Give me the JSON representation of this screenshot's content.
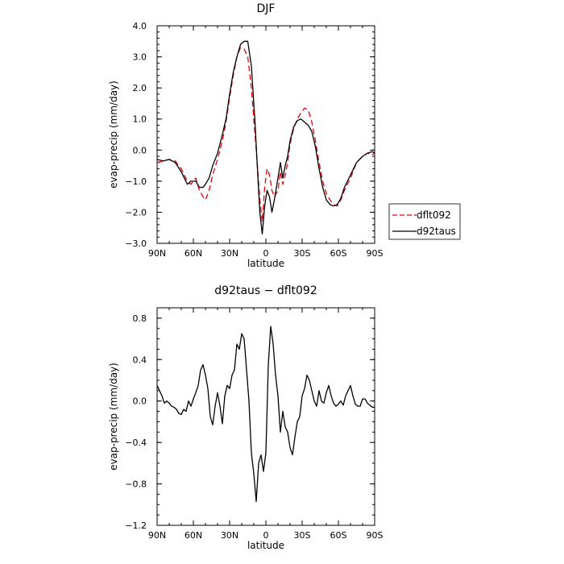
{
  "chart_data": [
    {
      "type": "line",
      "title": "DJF",
      "xlabel": "latitude",
      "ylabel": "evap-precip (mm/day)",
      "xlim": [
        90,
        -90
      ],
      "ylim": [
        -3.0,
        4.0
      ],
      "x_ticks": [
        90,
        60,
        30,
        0,
        -30,
        -60,
        -90
      ],
      "x_tick_labels": [
        "90N",
        "60N",
        "30N",
        "0",
        "30S",
        "60S",
        "90S"
      ],
      "y_ticks": [
        -3.0,
        -2.0,
        -1.0,
        0.0,
        1.0,
        2.0,
        3.0,
        4.0
      ],
      "y_tick_labels": [
        "−3.0",
        "−2.0",
        "−1.0",
        "0.0",
        "1.0",
        "2.0",
        "3.0",
        "4.0"
      ],
      "legend": "outside-right",
      "grid": false,
      "series": [
        {
          "name": "dflt092",
          "color": "#e8000b",
          "dash": "dashed",
          "x": [
            90,
            85,
            80,
            75,
            70,
            65,
            62,
            58,
            55,
            52,
            50,
            47,
            44,
            40,
            36,
            33,
            30,
            27,
            24,
            21,
            18,
            15,
            12,
            9,
            7,
            5,
            3,
            1,
            -1,
            -3,
            -5,
            -7,
            -10,
            -12,
            -14,
            -16,
            -18,
            -20,
            -23,
            -26,
            -29,
            -32,
            -35,
            -38,
            -41,
            -44,
            -47,
            -50,
            -53,
            -56,
            -59,
            -62,
            -65,
            -70,
            -75,
            -80,
            -84,
            -88,
            -90
          ],
          "y": [
            -0.4,
            -0.35,
            -0.3,
            -0.35,
            -0.6,
            -1.0,
            -1.1,
            -0.9,
            -1.3,
            -1.5,
            -1.6,
            -1.3,
            -0.8,
            -0.3,
            0.3,
            0.9,
            1.7,
            2.4,
            3.0,
            3.3,
            3.25,
            3.0,
            2.0,
            0.5,
            -0.5,
            -1.6,
            -2.3,
            -1.2,
            -0.6,
            -0.8,
            -1.3,
            -1.5,
            -1.3,
            -0.7,
            -1.1,
            -0.8,
            -0.4,
            0.2,
            0.7,
            1.0,
            1.2,
            1.35,
            1.3,
            0.9,
            0.3,
            -0.4,
            -1.0,
            -1.4,
            -1.6,
            -1.75,
            -1.8,
            -1.6,
            -1.3,
            -0.9,
            -0.4,
            -0.2,
            -0.1,
            -0.15,
            -0.1
          ]
        },
        {
          "name": "d92taus",
          "color": "#000000",
          "dash": "solid",
          "x": [
            90,
            85,
            80,
            75,
            70,
            65,
            62,
            58,
            55,
            52,
            50,
            47,
            44,
            40,
            36,
            33,
            30,
            27,
            24,
            21,
            18,
            15,
            12,
            9,
            7,
            5,
            3,
            1,
            -1,
            -3,
            -5,
            -7,
            -10,
            -12,
            -14,
            -16,
            -18,
            -20,
            -23,
            -26,
            -29,
            -32,
            -35,
            -38,
            -41,
            -44,
            -47,
            -50,
            -53,
            -56,
            -59,
            -62,
            -65,
            -70,
            -75,
            -80,
            -84,
            -88,
            -90
          ],
          "y": [
            -0.3,
            -0.35,
            -0.3,
            -0.4,
            -0.7,
            -1.1,
            -1.0,
            -1.0,
            -1.2,
            -1.2,
            -1.1,
            -0.9,
            -0.5,
            -0.1,
            0.5,
            1.0,
            1.8,
            2.5,
            3.0,
            3.4,
            3.5,
            3.5,
            2.7,
            0.9,
            -0.6,
            -2.0,
            -2.7,
            -1.8,
            -1.3,
            -1.5,
            -2.0,
            -1.6,
            -0.9,
            -0.4,
            -0.9,
            -0.5,
            -0.2,
            0.3,
            0.75,
            0.95,
            1.0,
            0.9,
            0.8,
            0.6,
            0.1,
            -0.6,
            -1.2,
            -1.6,
            -1.75,
            -1.8,
            -1.75,
            -1.55,
            -1.2,
            -0.8,
            -0.4,
            -0.2,
            -0.1,
            -0.05,
            -0.1
          ]
        }
      ]
    },
    {
      "type": "line",
      "title": "d92taus − dflt092",
      "xlabel": "latitude",
      "ylabel": "evap-precip (mm/day)",
      "xlim": [
        90,
        -90
      ],
      "ylim": [
        -1.2,
        0.9
      ],
      "x_ticks": [
        90,
        60,
        30,
        0,
        -30,
        -60,
        -90
      ],
      "x_tick_labels": [
        "90N",
        "60N",
        "30N",
        "0",
        "30S",
        "60S",
        "90S"
      ],
      "y_ticks": [
        -1.2,
        -0.8,
        -0.4,
        0.0,
        0.4,
        0.8
      ],
      "y_tick_labels": [
        "−1.2",
        "−0.8",
        "−0.4",
        "0.0",
        "0.4",
        "0.8"
      ],
      "grid": false,
      "series": [
        {
          "color": "#000000",
          "dash": "solid",
          "x": [
            90,
            88,
            86,
            84,
            82,
            80,
            78,
            76,
            74,
            72,
            70,
            68,
            66,
            64,
            62,
            60,
            58,
            56,
            54,
            52,
            50,
            48,
            46,
            44,
            42,
            40,
            38,
            36,
            34,
            32,
            30,
            28,
            26,
            24,
            22,
            20,
            18,
            16,
            14,
            12,
            10,
            8,
            6,
            4,
            2,
            0,
            -2,
            -4,
            -6,
            -8,
            -10,
            -12,
            -14,
            -16,
            -18,
            -20,
            -22,
            -24,
            -26,
            -28,
            -30,
            -32,
            -34,
            -36,
            -38,
            -40,
            -42,
            -44,
            -46,
            -48,
            -50,
            -52,
            -54,
            -56,
            -58,
            -60,
            -62,
            -64,
            -66,
            -68,
            -70,
            -72,
            -74,
            -76,
            -78,
            -80,
            -82,
            -84,
            -86,
            -88,
            -90
          ],
          "y": [
            0.15,
            0.1,
            0.05,
            -0.02,
            0.0,
            -0.02,
            -0.05,
            -0.06,
            -0.08,
            -0.12,
            -0.13,
            -0.08,
            -0.1,
            0.0,
            -0.05,
            0.02,
            0.08,
            0.15,
            0.3,
            0.35,
            0.25,
            0.12,
            -0.15,
            -0.23,
            -0.05,
            0.08,
            -0.05,
            -0.22,
            0.05,
            0.15,
            0.12,
            0.25,
            0.3,
            0.55,
            0.5,
            0.65,
            0.6,
            0.3,
            0.0,
            -0.5,
            -0.7,
            -0.97,
            -0.6,
            -0.52,
            -0.68,
            -0.5,
            0.35,
            0.72,
            0.55,
            0.25,
            0.05,
            -0.3,
            -0.1,
            -0.25,
            -0.3,
            -0.45,
            -0.52,
            -0.35,
            -0.2,
            -0.15,
            0.05,
            0.12,
            0.25,
            0.2,
            0.1,
            0.0,
            -0.05,
            0.1,
            0.0,
            -0.02,
            0.08,
            0.15,
            0.05,
            -0.02,
            -0.05,
            -0.03,
            0.0,
            -0.04,
            0.05,
            0.1,
            0.15,
            0.05,
            -0.03,
            -0.05,
            -0.05,
            0.02,
            0.02,
            -0.02,
            -0.04,
            -0.06,
            -0.06
          ]
        }
      ]
    }
  ]
}
